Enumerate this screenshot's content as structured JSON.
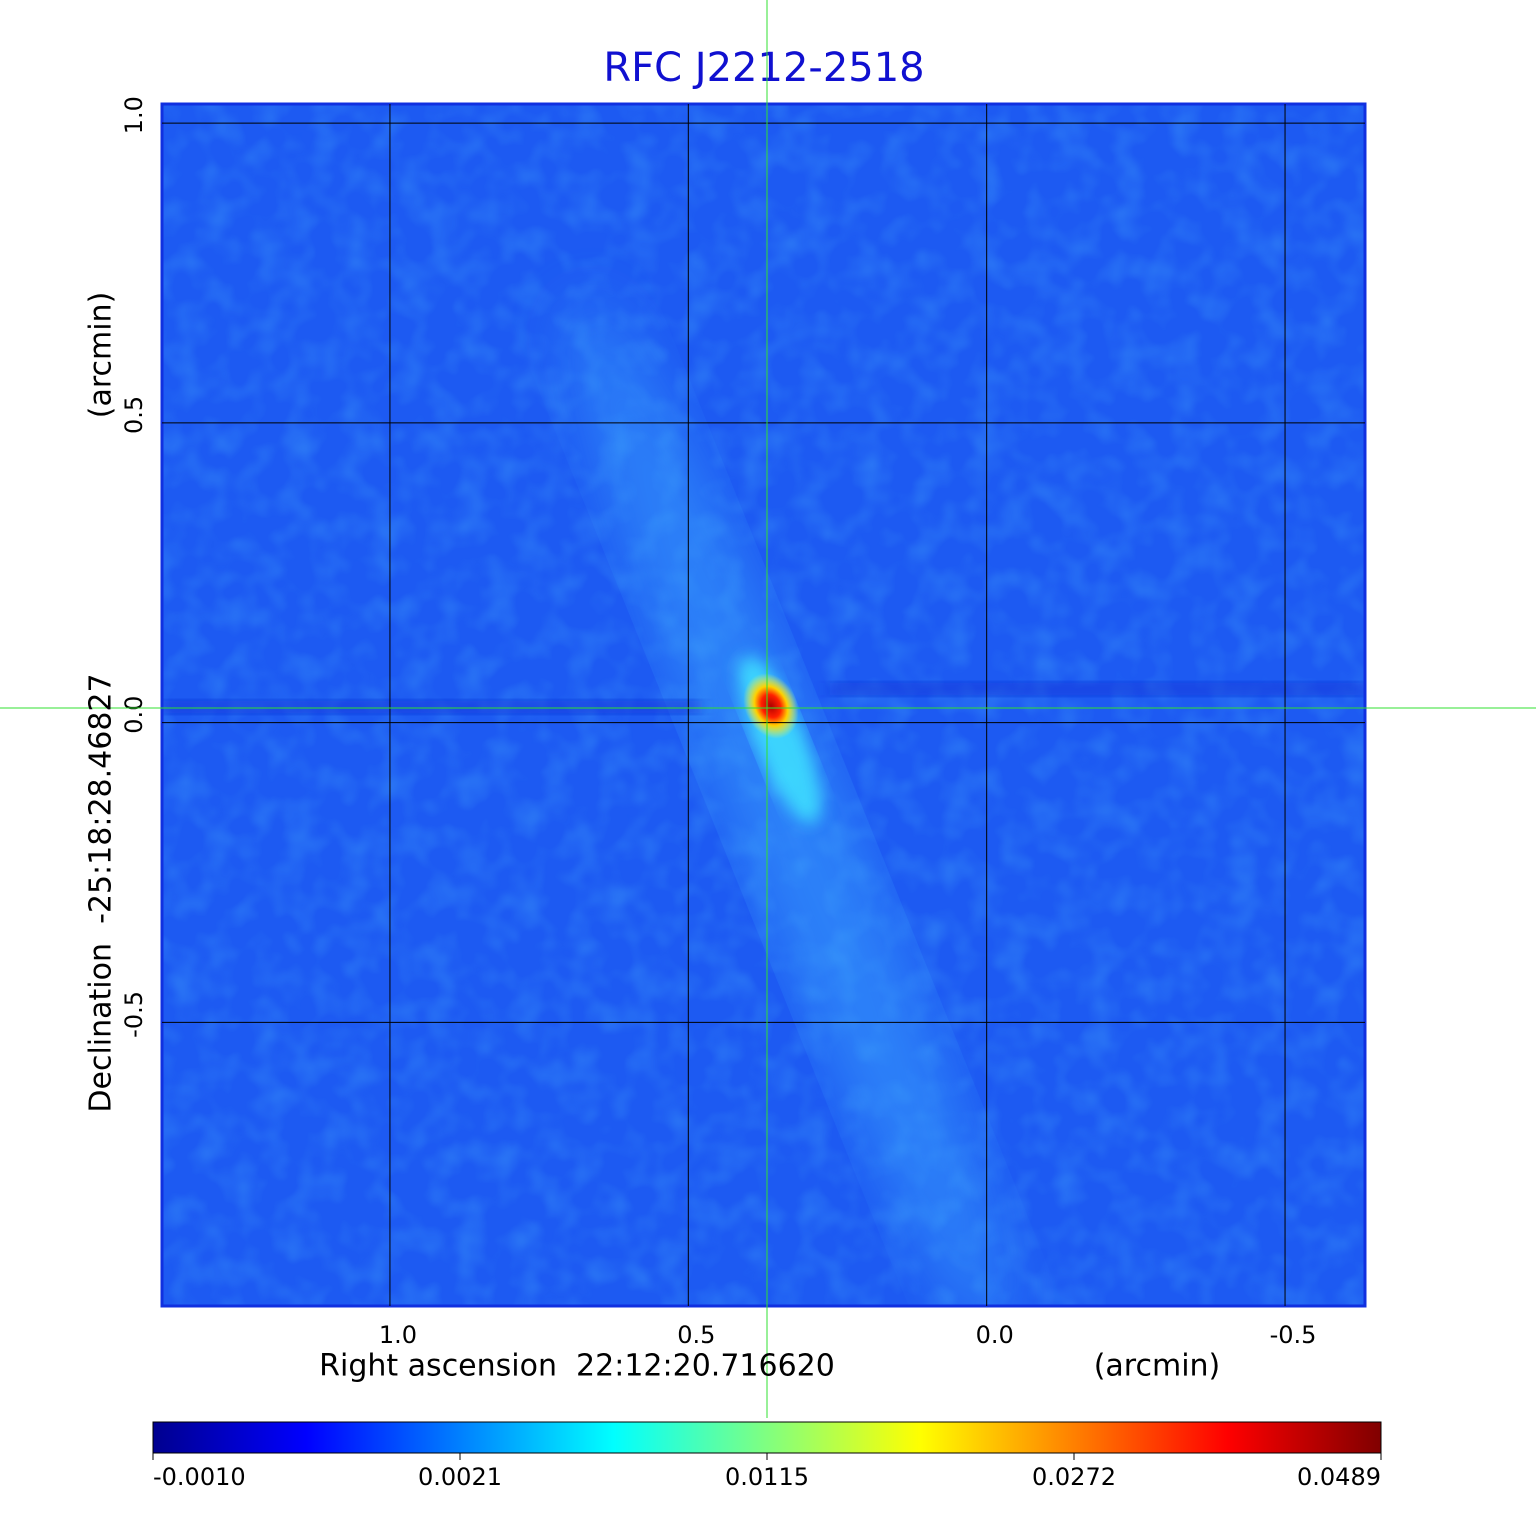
{
  "chart_data": {
    "type": "image",
    "title": "RFC J2212-2518",
    "x_label": "Right ascension  22:12:20.716620",
    "x_unit": "(arcmin)",
    "y_label": "Declination  -25:18:28.46827",
    "y_unit": "(arcmin)",
    "xlim": [
      1.382,
      -0.634
    ],
    "ylim": [
      -0.973,
      1.032
    ],
    "xticks": [
      {
        "value": 1,
        "label": "1.0"
      },
      0.5,
      {
        "value": 0,
        "label": "0.0"
      },
      -0.5
    ],
    "yticks": [
      {
        "value": 1,
        "label": "1.0"
      },
      0.5,
      {
        "value": 0,
        "label": "0.0"
      },
      -0.5
    ],
    "grid": true,
    "colormap": "jet",
    "colorbar_ticks": [
      {
        "value": -0.001,
        "label": "-0.0010"
      },
      0.0021,
      0.0115,
      0.0272,
      0.0489
    ]
  }
}
